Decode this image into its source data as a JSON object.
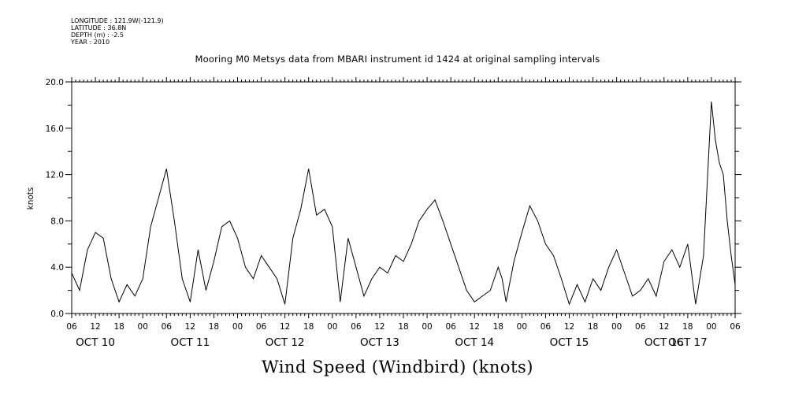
{
  "header": {
    "meta_lines": [
      "LONGITUDE : 121.9W(-121.9)",
      "LATITUDE : 36.8N",
      "DEPTH (m) : -2.5",
      "YEAR : 2010"
    ],
    "title": "Mooring M0 Metsys data from MBARI instrument id 1424 at original sampling intervals"
  },
  "chart_data": {
    "type": "line",
    "title": "Mooring M0 Metsys data from MBARI instrument id 1424 at original sampling intervals",
    "bottom_title": "Wind Speed (Windbird) (knots)",
    "ylabel": "knots",
    "xlabel": "",
    "ylim": [
      0,
      20
    ],
    "y_ticks": [
      "0.0",
      "4.0",
      "8.0",
      "12.0",
      "16.0",
      "20.0"
    ],
    "x_range_hours": [
      "2010-10-10T06:00",
      "2010-10-17T06:00"
    ],
    "x_hour_labels": [
      "06",
      "12",
      "18",
      "00",
      "06",
      "12",
      "18",
      "00",
      "06",
      "12",
      "18",
      "00",
      "06",
      "12",
      "18",
      "00",
      "06",
      "12",
      "18",
      "00",
      "06",
      "12",
      "18",
      "00",
      "06",
      "12",
      "18",
      "00",
      "06"
    ],
    "x_day_labels": [
      "OCT 10",
      "OCT 11",
      "OCT 12",
      "OCT 13",
      "OCT 14",
      "OCT 15",
      "OCT 16",
      "OCT 17"
    ],
    "series": [
      {
        "name": "",
        "x": [
          "2010-10-10T06:00",
          "2010-10-10T08:00",
          "2010-10-10T10:00",
          "2010-10-10T12:00",
          "2010-10-10T14:00",
          "2010-10-10T16:00",
          "2010-10-10T18:00",
          "2010-10-10T20:00",
          "2010-10-10T22:00",
          "2010-10-11T00:00",
          "2010-10-11T02:00",
          "2010-10-11T04:00",
          "2010-10-11T06:00",
          "2010-10-11T08:00",
          "2010-10-11T10:00",
          "2010-10-11T12:00",
          "2010-10-11T14:00",
          "2010-10-11T16:00",
          "2010-10-11T18:00",
          "2010-10-11T20:00",
          "2010-10-11T22:00",
          "2010-10-12T00:00",
          "2010-10-12T02:00",
          "2010-10-12T04:00",
          "2010-10-12T06:00",
          "2010-10-12T08:00",
          "2010-10-12T10:00",
          "2010-10-12T12:00",
          "2010-10-12T14:00",
          "2010-10-12T16:00",
          "2010-10-12T18:00",
          "2010-10-12T20:00",
          "2010-10-12T22:00",
          "2010-10-13T00:00",
          "2010-10-13T02:00",
          "2010-10-13T04:00",
          "2010-10-13T06:00",
          "2010-10-13T08:00",
          "2010-10-13T10:00",
          "2010-10-13T12:00",
          "2010-10-13T14:00",
          "2010-10-13T16:00",
          "2010-10-13T18:00",
          "2010-10-13T20:00",
          "2010-10-13T22:00",
          "2010-10-14T00:00",
          "2010-10-14T02:00",
          "2010-10-14T04:00",
          "2010-10-14T06:00",
          "2010-10-14T08:00",
          "2010-10-14T10:00",
          "2010-10-14T12:00",
          "2010-10-14T14:00",
          "2010-10-14T16:00",
          "2010-10-14T18:00",
          "2010-10-14T19:00",
          "2010-10-14T20:00",
          "2010-10-14T22:00",
          "2010-10-15T00:00",
          "2010-10-15T02:00",
          "2010-10-15T04:00",
          "2010-10-15T06:00",
          "2010-10-15T08:00",
          "2010-10-15T10:00",
          "2010-10-15T12:00",
          "2010-10-15T14:00",
          "2010-10-15T16:00",
          "2010-10-15T18:00",
          "2010-10-15T20:00",
          "2010-10-15T22:00",
          "2010-10-16T00:00",
          "2010-10-16T02:00",
          "2010-10-16T04:00",
          "2010-10-16T06:00",
          "2010-10-16T08:00",
          "2010-10-16T10:00",
          "2010-10-16T12:00",
          "2010-10-16T14:00",
          "2010-10-16T16:00",
          "2010-10-16T18:00",
          "2010-10-16T20:00",
          "2010-10-16T22:00",
          "2010-10-17T00:00",
          "2010-10-17T01:00",
          "2010-10-17T02:00",
          "2010-10-17T03:00",
          "2010-10-17T04:00",
          "2010-10-17T05:00",
          "2010-10-17T06:00"
        ],
        "y": [
          3.5,
          2.0,
          5.5,
          7.0,
          6.5,
          3.0,
          1.0,
          2.5,
          1.5,
          3.0,
          7.5,
          10.0,
          12.5,
          8.0,
          3.0,
          1.0,
          5.5,
          2.0,
          4.5,
          7.5,
          8.0,
          6.5,
          4.0,
          3.0,
          5.0,
          4.0,
          3.0,
          0.8,
          6.5,
          9.0,
          12.5,
          8.5,
          9.0,
          7.5,
          1.0,
          6.5,
          4.0,
          1.5,
          3.0,
          4.0,
          3.5,
          5.0,
          4.5,
          6.0,
          8.0,
          9.0,
          9.8,
          8.0,
          6.0,
          4.0,
          2.0,
          1.0,
          1.5,
          2.0,
          4.0,
          3.0,
          1.0,
          4.5,
          7.0,
          9.3,
          8.0,
          6.0,
          5.0,
          3.0,
          0.8,
          2.5,
          1.0,
          3.0,
          2.0,
          4.0,
          5.5,
          3.5,
          1.5,
          2.0,
          3.0,
          1.5,
          4.5,
          5.5,
          4.0,
          6.0,
          0.8,
          5.0,
          18.3,
          15.0,
          13.0,
          12.0,
          8.0,
          5.0,
          2.5
        ]
      }
    ]
  }
}
